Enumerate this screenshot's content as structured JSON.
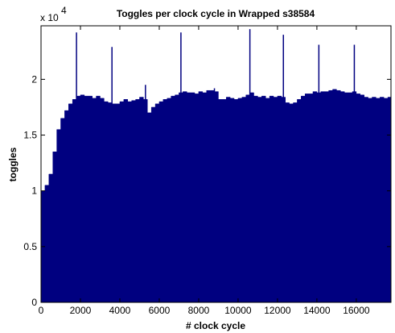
{
  "chart_data": {
    "type": "area",
    "title": "Toggles per clock cycle in Wrapped s38584",
    "x_label": "# clock cycle",
    "y_label": "toggles",
    "y_multiplier": {
      "base": "x 10",
      "exponent": "4"
    },
    "color": "#000080",
    "xlim": [
      0,
      17760
    ],
    "ylim": [
      0,
      24800
    ],
    "xticks": [
      0,
      2000,
      4000,
      6000,
      8000,
      10000,
      12000,
      14000,
      16000
    ],
    "yticks": [
      0,
      {
        "value": 5000,
        "label": "0.5"
      },
      {
        "value": 10000,
        "label": "1"
      },
      {
        "value": 15000,
        "label": "1.5"
      },
      {
        "value": 20000,
        "label": "2"
      }
    ],
    "x": [
      0,
      200,
      400,
      600,
      800,
      1000,
      1200,
      1400,
      1600,
      1800,
      2000,
      2200,
      2400,
      2600,
      2800,
      3000,
      3200,
      3400,
      3600,
      3800,
      4000,
      4200,
      4400,
      4600,
      4800,
      5000,
      5200,
      5400,
      5600,
      5800,
      6000,
      6200,
      6400,
      6600,
      6800,
      7000,
      7200,
      7400,
      7600,
      7800,
      8000,
      8200,
      8400,
      8600,
      8800,
      9000,
      9200,
      9400,
      9600,
      9800,
      10000,
      10200,
      10400,
      10600,
      10800,
      11000,
      11200,
      11400,
      11600,
      11800,
      12000,
      12200,
      12400,
      12600,
      12800,
      13000,
      13200,
      13400,
      13600,
      13800,
      14000,
      14200,
      14400,
      14600,
      14800,
      15000,
      15200,
      15400,
      15600,
      15800,
      16000,
      16200,
      16400,
      16600,
      16800,
      17000,
      17200,
      17400,
      17600
    ],
    "values": [
      10000,
      10500,
      11500,
      13500,
      15500,
      16500,
      17200,
      17800,
      18200,
      18500,
      18600,
      18500,
      18500,
      18300,
      18500,
      18300,
      18000,
      17900,
      17800,
      17800,
      18000,
      18200,
      18000,
      18100,
      18200,
      18400,
      18200,
      17000,
      17500,
      17800,
      18000,
      18200,
      18300,
      18500,
      18600,
      18800,
      18900,
      18800,
      18800,
      18700,
      18900,
      18800,
      19000,
      19000,
      18900,
      18200,
      18200,
      18400,
      18300,
      18200,
      18300,
      18400,
      18600,
      18800,
      18500,
      18400,
      18500,
      18300,
      18500,
      18400,
      18500,
      18400,
      17900,
      17800,
      17900,
      18200,
      18500,
      18700,
      18700,
      18900,
      18800,
      18900,
      18900,
      19000,
      19100,
      19000,
      18900,
      18800,
      18800,
      18900,
      18700,
      18600,
      18400,
      18300,
      18400,
      18300,
      18400,
      18300,
      18400
    ],
    "peaks": {
      "x": [
        1800,
        3600,
        5300,
        7100,
        8800,
        10600,
        12300,
        14100,
        15900
      ],
      "values": [
        24200,
        22900,
        19500,
        24200,
        19200,
        24500,
        24000,
        23100,
        23100
      ]
    }
  }
}
